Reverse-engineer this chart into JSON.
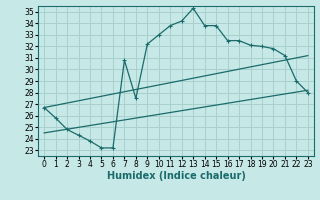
{
  "title": "",
  "xlabel": "Humidex (Indice chaleur)",
  "ylabel": "",
  "xlim": [
    -0.5,
    23.5
  ],
  "ylim": [
    22.5,
    35.5
  ],
  "xticks": [
    0,
    1,
    2,
    3,
    4,
    5,
    6,
    7,
    8,
    9,
    10,
    11,
    12,
    13,
    14,
    15,
    16,
    17,
    18,
    19,
    20,
    21,
    22,
    23
  ],
  "yticks": [
    23,
    24,
    25,
    26,
    27,
    28,
    29,
    30,
    31,
    32,
    33,
    34,
    35
  ],
  "bg_color": "#c6e8e6",
  "grid_color": "#aad0ce",
  "line_color": "#1a6b6b",
  "curve1_x": [
    0,
    1,
    2,
    3,
    4,
    5,
    6,
    7,
    8,
    9,
    10,
    11,
    12,
    13,
    14,
    15,
    16,
    17,
    18,
    19,
    20,
    21,
    22,
    23
  ],
  "curve1_y": [
    26.7,
    25.8,
    24.8,
    24.3,
    23.8,
    23.2,
    23.2,
    30.8,
    27.5,
    32.2,
    33.0,
    33.8,
    34.2,
    35.3,
    33.8,
    33.8,
    32.5,
    32.5,
    32.1,
    32.0,
    31.8,
    31.2,
    29.0,
    28.0
  ],
  "curve2_x": [
    0,
    23
  ],
  "curve2_y": [
    24.5,
    28.2
  ],
  "curve3_x": [
    0,
    23
  ],
  "curve3_y": [
    26.7,
    31.2
  ],
  "fontsize_xlabel": 7,
  "tick_fontsize": 5.5
}
